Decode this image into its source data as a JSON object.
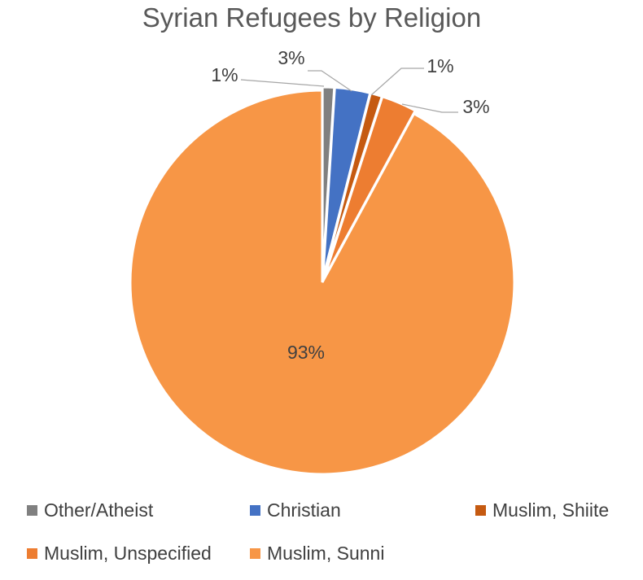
{
  "chart_data": {
    "type": "pie",
    "title": "Syrian Refugees by Religion",
    "slices": [
      {
        "label": "Other/Atheist",
        "value": 1,
        "display": "1%",
        "color": "#808080"
      },
      {
        "label": "Christian",
        "value": 3,
        "display": "3%",
        "color": "#4472c4"
      },
      {
        "label": "Muslim, Shiite",
        "value": 1,
        "display": "1%",
        "color": "#c55a11"
      },
      {
        "label": "Muslim, Unspecified",
        "value": 3,
        "display": "3%",
        "color": "#ed7d31"
      },
      {
        "label": "Muslim, Sunni",
        "value": 93,
        "display": "93%",
        "color": "#f79646"
      }
    ],
    "legend_position": "bottom"
  }
}
